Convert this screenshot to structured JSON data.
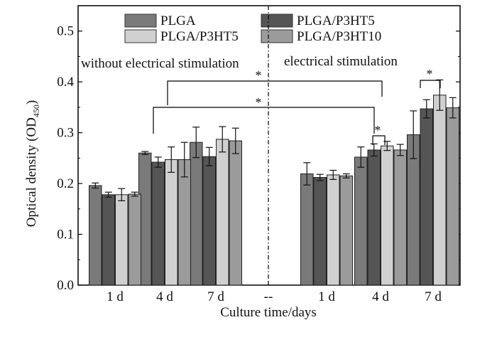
{
  "chart_data": {
    "type": "bar",
    "xlabel": "Culture time/days",
    "ylabel_main": "Optical density (OD",
    "ylabel_sub": "450",
    "ylabel_close": ")",
    "ylim": [
      0,
      0.55
    ],
    "yticks": [
      "0.0",
      "0.1",
      "0.2",
      "0.3",
      "0.4",
      "0.5"
    ],
    "categories": [
      "1 d",
      "4 d",
      "7 d",
      "--",
      "1 d",
      "4 d",
      "7 d"
    ],
    "groups": {
      "left": "without electrical stimulation",
      "right": "electrical stimulation"
    },
    "legend_placement": "top",
    "series": [
      {
        "name": "PLGA",
        "color": "#7a7a7a",
        "values": [
          0.196,
          0.26,
          0.281,
          null,
          0.219,
          0.252,
          0.296
        ],
        "errors": [
          0.005,
          0.003,
          0.03,
          null,
          0.022,
          0.02,
          0.047
        ]
      },
      {
        "name": "PLGA/P3HT5",
        "color": "#555555",
        "values": [
          0.178,
          0.242,
          0.253,
          null,
          0.212,
          0.266,
          0.347
        ],
        "errors": [
          0.005,
          0.01,
          0.018,
          null,
          0.006,
          0.012,
          0.018
        ]
      },
      {
        "name": "PLGA/P3HT5",
        "color": "#d0d0d0",
        "values": [
          0.178,
          0.247,
          0.287,
          null,
          0.217,
          0.274,
          0.374
        ],
        "errors": [
          0.012,
          0.025,
          0.025,
          null,
          0.009,
          0.009,
          0.03
        ]
      },
      {
        "name": "PLGA/P3HT10",
        "color": "#9b9b9b",
        "values": [
          0.179,
          0.247,
          0.284,
          null,
          0.215,
          0.266,
          0.349
        ],
        "errors": [
          0.004,
          0.034,
          0.025,
          null,
          0.004,
          0.011,
          0.02
        ]
      }
    ],
    "annotations": [
      "*",
      "*",
      "*",
      "*"
    ]
  }
}
